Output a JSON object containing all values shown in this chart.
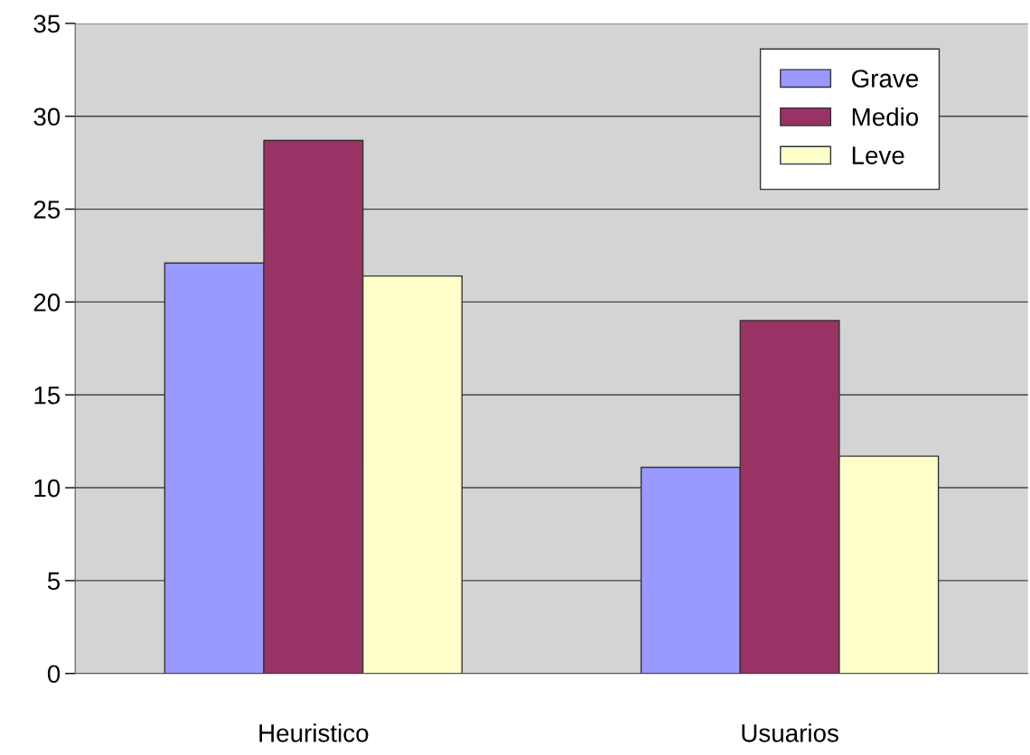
{
  "chart_data": {
    "type": "bar",
    "categories": [
      "Heuristico",
      "Usuarios"
    ],
    "series": [
      {
        "name": "Grave",
        "color": "#9999ff",
        "values": [
          22.1,
          11.1
        ]
      },
      {
        "name": "Medio",
        "color": "#993366",
        "values": [
          28.7,
          19.0
        ]
      },
      {
        "name": "Leve",
        "color": "#ffffcc",
        "values": [
          21.4,
          11.7
        ]
      }
    ],
    "ylim": [
      0,
      35
    ],
    "yticks": [
      0,
      5,
      10,
      15,
      20,
      25,
      30,
      35
    ],
    "grid": "y",
    "legend": "top right"
  }
}
